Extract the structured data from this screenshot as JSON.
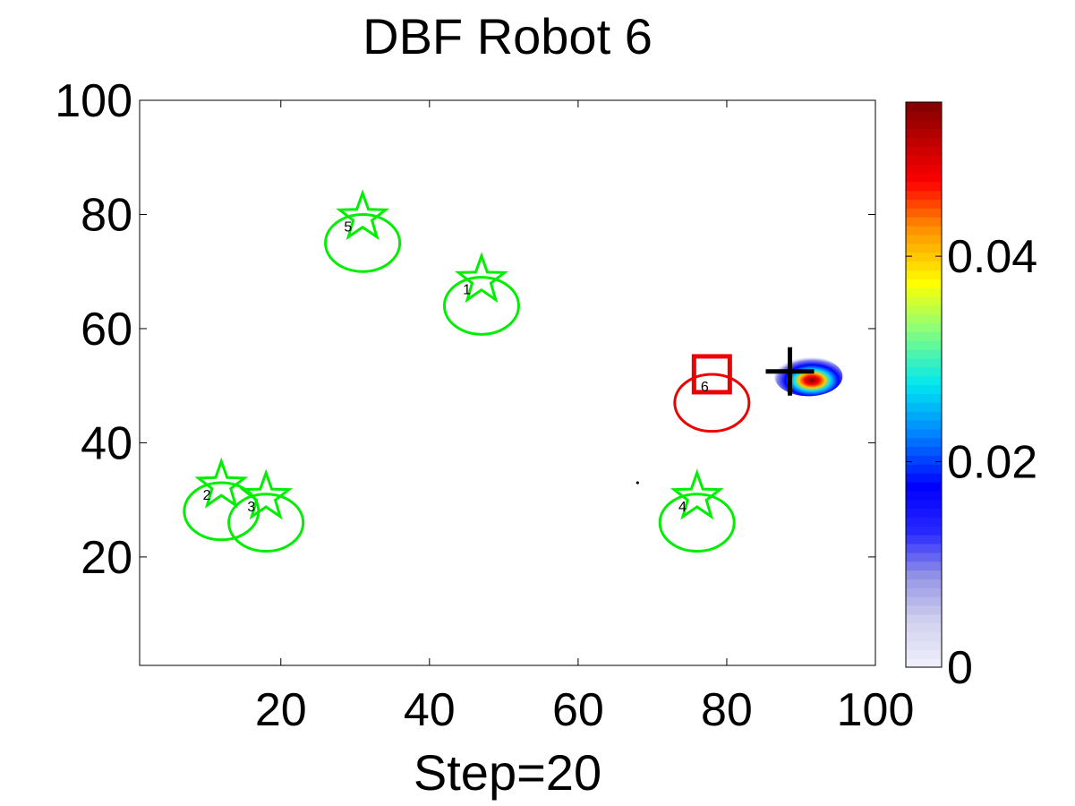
{
  "chart_data": {
    "type": "scatter",
    "title": "DBF Robot 6",
    "xlabel": "Step=20",
    "ylabel": "",
    "xlim": [
      1,
      100
    ],
    "ylim": [
      1,
      100
    ],
    "x_ticks": [
      20,
      40,
      60,
      80,
      100
    ],
    "y_ticks": [
      20,
      40,
      60,
      80,
      100
    ],
    "grid": false,
    "robots": [
      {
        "id": "1",
        "star": [
          47,
          68.5
        ],
        "ellipse_center": [
          47,
          64
        ],
        "label_pos": [
          44.5,
          66
        ],
        "color": "#00ee00"
      },
      {
        "id": "2",
        "star": [
          12,
          32.5
        ],
        "ellipse_center": [
          12,
          28
        ],
        "label_pos": [
          9.5,
          30
        ],
        "color": "#00ee00"
      },
      {
        "id": "3",
        "star": [
          18,
          30.5
        ],
        "ellipse_center": [
          18,
          26
        ],
        "label_pos": [
          15.5,
          28
        ],
        "color": "#00ee00"
      },
      {
        "id": "4",
        "star": [
          76,
          30.5
        ],
        "ellipse_center": [
          76,
          26
        ],
        "label_pos": [
          73.5,
          28
        ],
        "color": "#00ee00"
      },
      {
        "id": "5",
        "star": [
          31,
          79.5
        ],
        "ellipse_center": [
          31,
          75
        ],
        "label_pos": [
          28.5,
          77
        ],
        "color": "#00ee00"
      },
      {
        "id": "6",
        "square": [
          78,
          52
        ],
        "ellipse_center": [
          78,
          47
        ],
        "label_pos": [
          76.5,
          49
        ],
        "color": "#ee0000"
      }
    ],
    "ellipse_radii": [
      5,
      5
    ],
    "target_cross": [
      88.5,
      52.5
    ],
    "small_dot": [
      68,
      33
    ],
    "density_peak": [
      91,
      51
    ],
    "colorbar": {
      "min": 0,
      "max": 0.055,
      "ticks": [
        0,
        0.02,
        0.04
      ],
      "tick_labels": [
        "0",
        "0.02",
        "0.04"
      ]
    }
  }
}
